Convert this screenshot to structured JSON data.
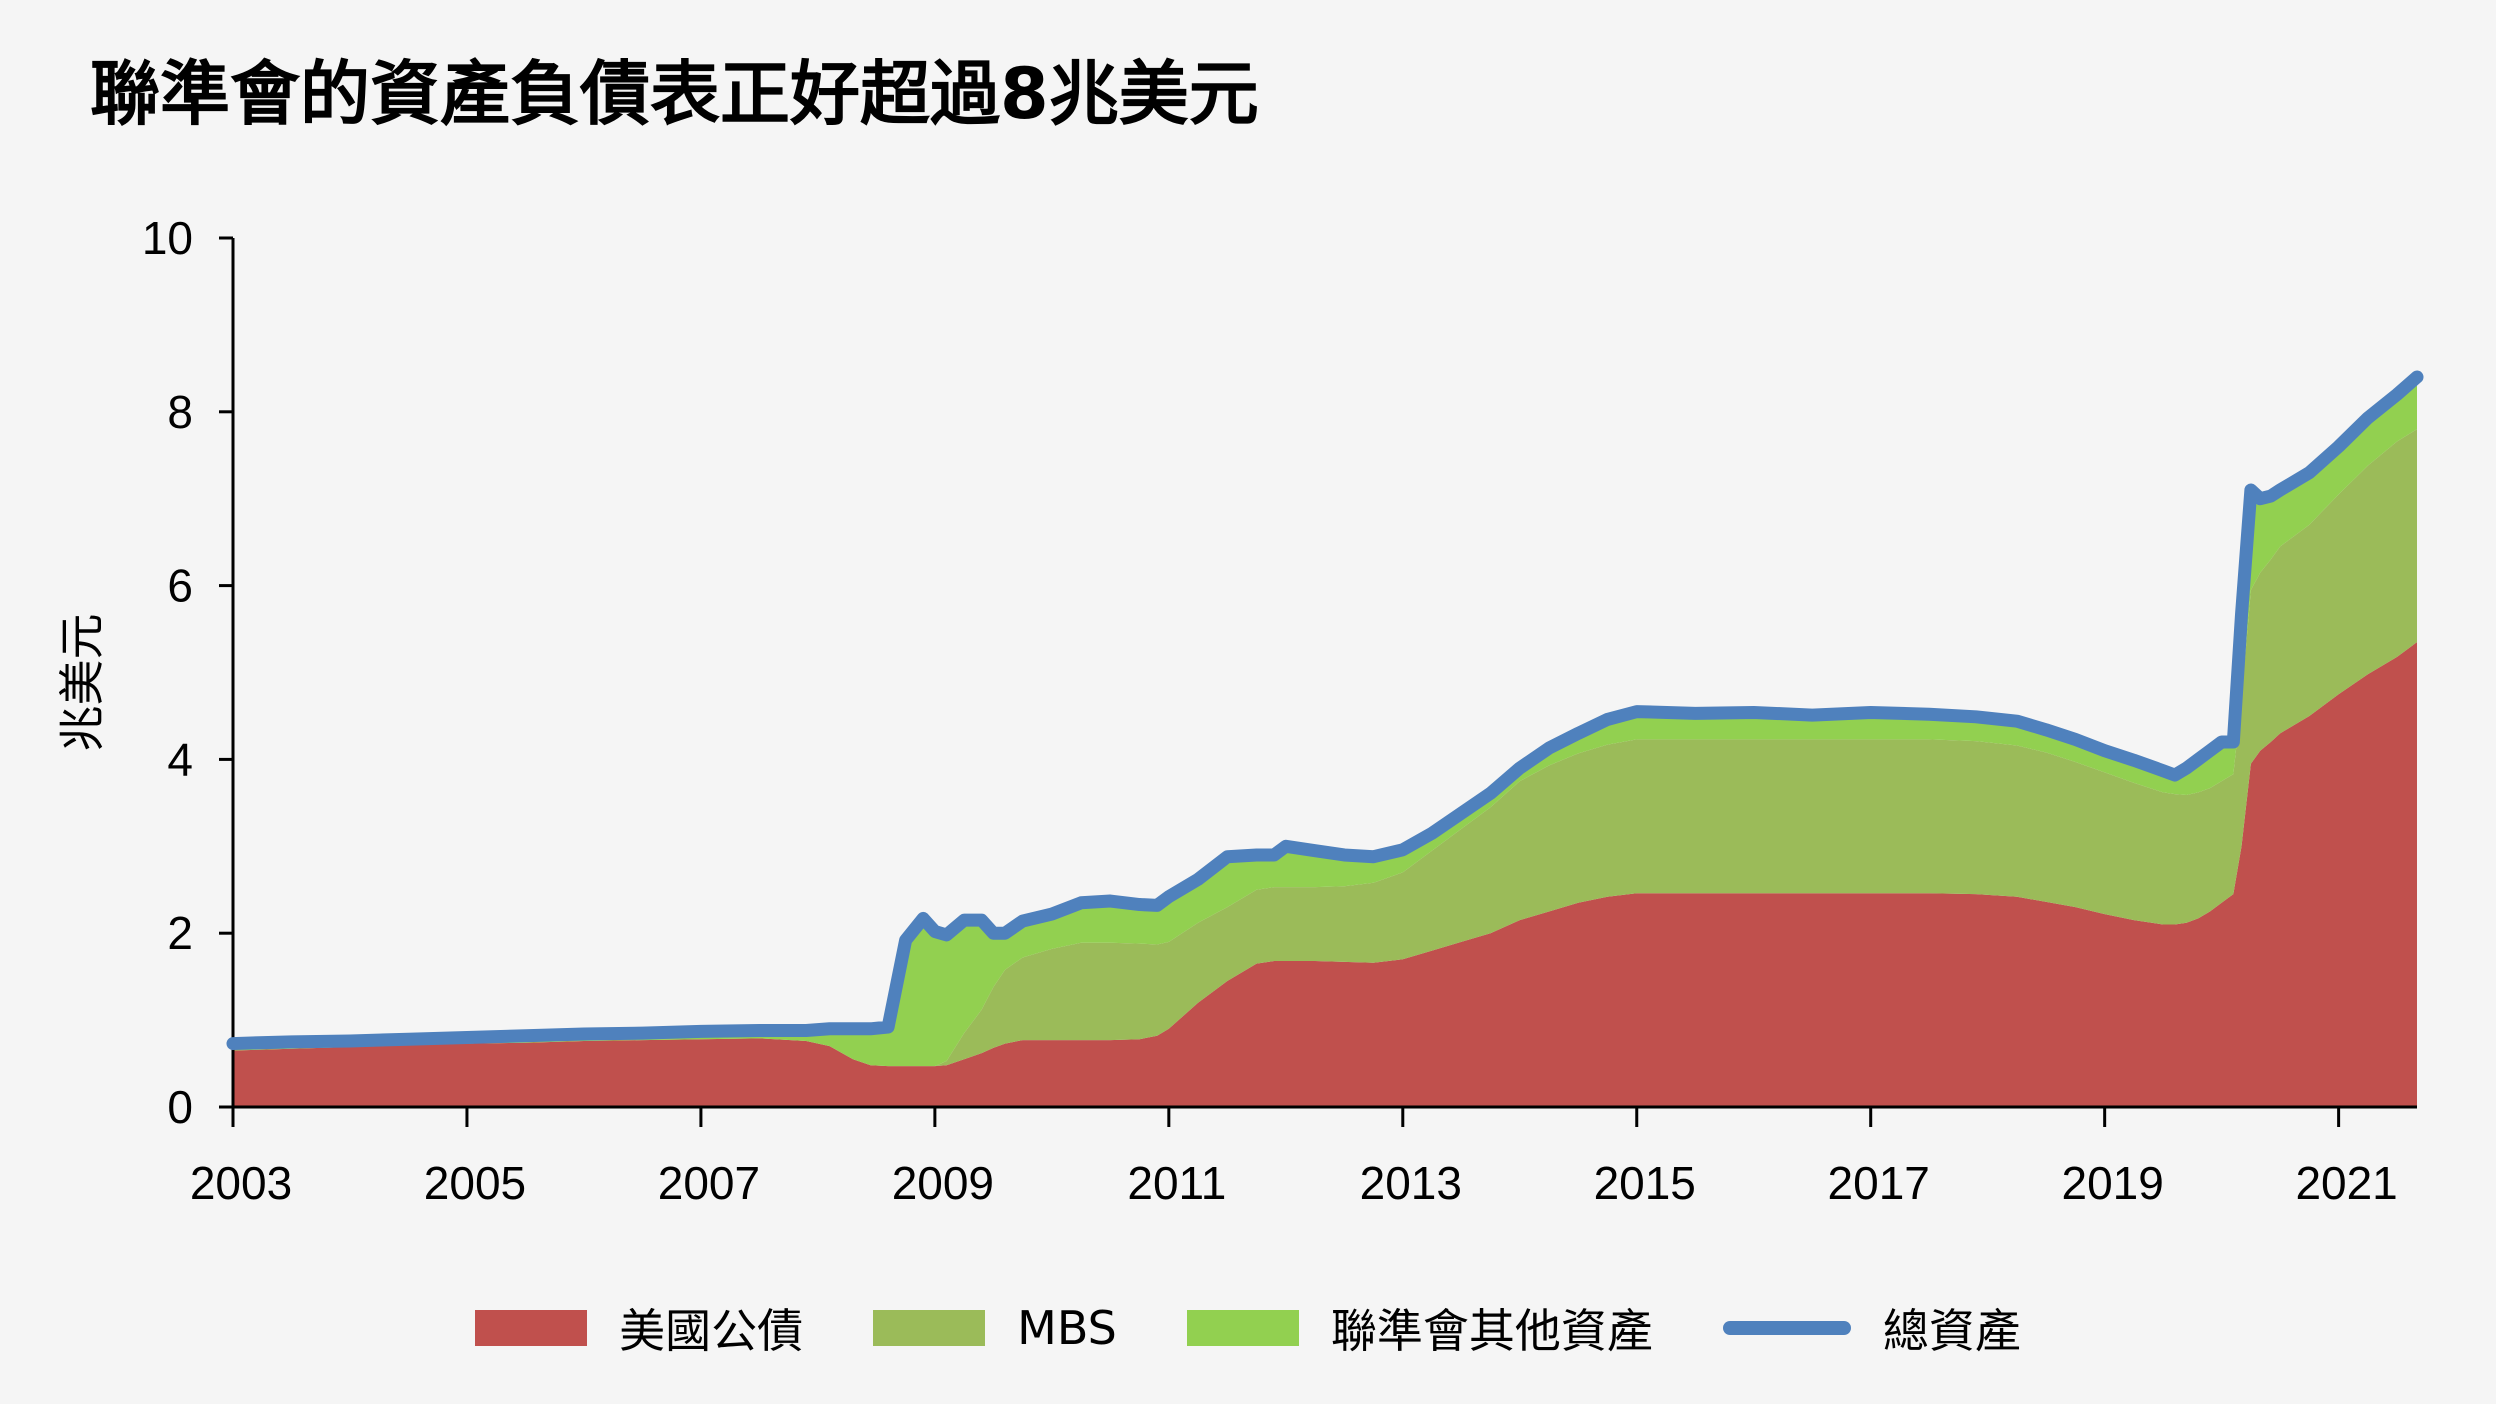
{
  "chart_data": {
    "type": "area",
    "title": "聯準會的資產負債表正好超過8兆美元",
    "ylabel": "兆美元",
    "xlabel": "",
    "xlim": [
      2003.0,
      2021.67
    ],
    "ylim": [
      0,
      10
    ],
    "yticks": [
      0,
      2,
      4,
      6,
      8,
      10
    ],
    "xticks": [
      2003,
      2005,
      2007,
      2009,
      2011,
      2013,
      2015,
      2017,
      2019,
      2021
    ],
    "grid": false,
    "legend_position": "bottom",
    "colors": {
      "treasury": "#c0504d",
      "mbs": "#9bbb59",
      "other": "#92d050",
      "total": "#4f81bd",
      "background": "#f5f5f5"
    },
    "x": [
      2003.0,
      2003.5,
      2004.0,
      2004.5,
      2005.0,
      2005.5,
      2006.0,
      2006.5,
      2007.0,
      2007.5,
      2007.9,
      2008.1,
      2008.3,
      2008.45,
      2008.6,
      2008.75,
      2008.9,
      2009.0,
      2009.1,
      2009.25,
      2009.4,
      2009.5,
      2009.6,
      2009.75,
      2010.0,
      2010.25,
      2010.5,
      2010.75,
      2010.9,
      2011.0,
      2011.25,
      2011.5,
      2011.75,
      2011.9,
      2012.0,
      2012.25,
      2012.5,
      2012.75,
      2013.0,
      2013.25,
      2013.5,
      2013.75,
      2014.0,
      2014.25,
      2014.5,
      2014.75,
      2015.0,
      2015.5,
      2016.0,
      2016.5,
      2017.0,
      2017.5,
      2017.9,
      2018.25,
      2018.5,
      2018.75,
      2019.0,
      2019.25,
      2019.5,
      2019.6,
      2019.7,
      2019.8,
      2019.9,
      2020.0,
      2020.1,
      2020.17,
      2020.25,
      2020.33,
      2020.42,
      2020.5,
      2020.75,
      2021.0,
      2021.25,
      2021.5,
      2021.67
    ],
    "series": [
      {
        "name": "美國公債",
        "values": [
          0.65,
          0.67,
          0.69,
          0.71,
          0.73,
          0.74,
          0.76,
          0.77,
          0.78,
          0.79,
          0.76,
          0.7,
          0.55,
          0.48,
          0.47,
          0.47,
          0.47,
          0.47,
          0.48,
          0.55,
          0.62,
          0.68,
          0.73,
          0.77,
          0.77,
          0.77,
          0.77,
          0.78,
          0.82,
          0.9,
          1.2,
          1.45,
          1.65,
          1.68,
          1.68,
          1.68,
          1.67,
          1.66,
          1.7,
          1.8,
          1.9,
          2.0,
          2.15,
          2.25,
          2.35,
          2.42,
          2.46,
          2.46,
          2.46,
          2.46,
          2.46,
          2.46,
          2.45,
          2.42,
          2.36,
          2.3,
          2.22,
          2.15,
          2.1,
          2.1,
          2.12,
          2.17,
          2.25,
          2.35,
          2.45,
          3.0,
          3.95,
          4.1,
          4.2,
          4.3,
          4.5,
          4.75,
          4.98,
          5.18,
          5.35
        ]
      },
      {
        "name": "MBS",
        "values": [
          0,
          0,
          0,
          0,
          0,
          0,
          0,
          0,
          0,
          0,
          0,
          0,
          0,
          0,
          0,
          0,
          0,
          0,
          0.05,
          0.3,
          0.5,
          0.7,
          0.85,
          0.95,
          1.05,
          1.12,
          1.12,
          1.1,
          1.05,
          1.0,
          0.92,
          0.85,
          0.85,
          0.85,
          0.85,
          0.85,
          0.87,
          0.92,
          1.0,
          1.15,
          1.3,
          1.45,
          1.6,
          1.68,
          1.72,
          1.75,
          1.77,
          1.77,
          1.77,
          1.77,
          1.77,
          1.77,
          1.76,
          1.74,
          1.72,
          1.67,
          1.63,
          1.58,
          1.52,
          1.5,
          1.47,
          1.45,
          1.42,
          1.4,
          1.38,
          1.7,
          2.0,
          2.05,
          2.1,
          2.15,
          2.2,
          2.3,
          2.4,
          2.48,
          2.45
        ]
      },
      {
        "name": "聯準會其他資產",
        "values": [
          0.08,
          0.08,
          0.07,
          0.07,
          0.07,
          0.08,
          0.08,
          0.08,
          0.09,
          0.09,
          0.12,
          0.2,
          0.35,
          0.42,
          0.45,
          1.45,
          1.7,
          1.55,
          1.45,
          1.3,
          1.03,
          0.62,
          0.42,
          0.42,
          0.4,
          0.46,
          0.48,
          0.45,
          0.45,
          0.52,
          0.5,
          0.58,
          0.4,
          0.37,
          0.47,
          0.42,
          0.36,
          0.3,
          0.26,
          0.2,
          0.18,
          0.16,
          0.15,
          0.2,
          0.23,
          0.29,
          0.32,
          0.3,
          0.31,
          0.28,
          0.31,
          0.29,
          0.28,
          0.28,
          0.26,
          0.26,
          0.25,
          0.26,
          0.25,
          0.22,
          0.31,
          0.38,
          0.43,
          0.45,
          0.37,
          0.97,
          1.15,
          0.85,
          0.73,
          0.65,
          0.6,
          0.55,
          0.55,
          0.54,
          0.6
        ]
      },
      {
        "name": "總資產",
        "values": [
          0.73,
          0.75,
          0.76,
          0.78,
          0.8,
          0.82,
          0.84,
          0.85,
          0.87,
          0.88,
          0.88,
          0.9,
          0.9,
          0.9,
          0.92,
          1.92,
          2.17,
          2.02,
          1.98,
          2.15,
          2.15,
          2.0,
          2.0,
          2.14,
          2.22,
          2.35,
          2.37,
          2.33,
          2.32,
          2.42,
          2.62,
          2.88,
          2.9,
          2.9,
          3.0,
          2.95,
          2.9,
          2.88,
          2.96,
          3.15,
          3.38,
          3.61,
          3.9,
          4.13,
          4.3,
          4.46,
          4.55,
          4.53,
          4.54,
          4.51,
          4.54,
          4.52,
          4.49,
          4.44,
          4.34,
          4.23,
          4.1,
          3.99,
          3.87,
          3.82,
          3.9,
          4.0,
          4.1,
          4.2,
          4.2,
          5.67,
          7.1,
          7.0,
          7.03,
          7.1,
          7.3,
          7.6,
          7.93,
          8.2,
          8.4
        ]
      }
    ]
  }
}
